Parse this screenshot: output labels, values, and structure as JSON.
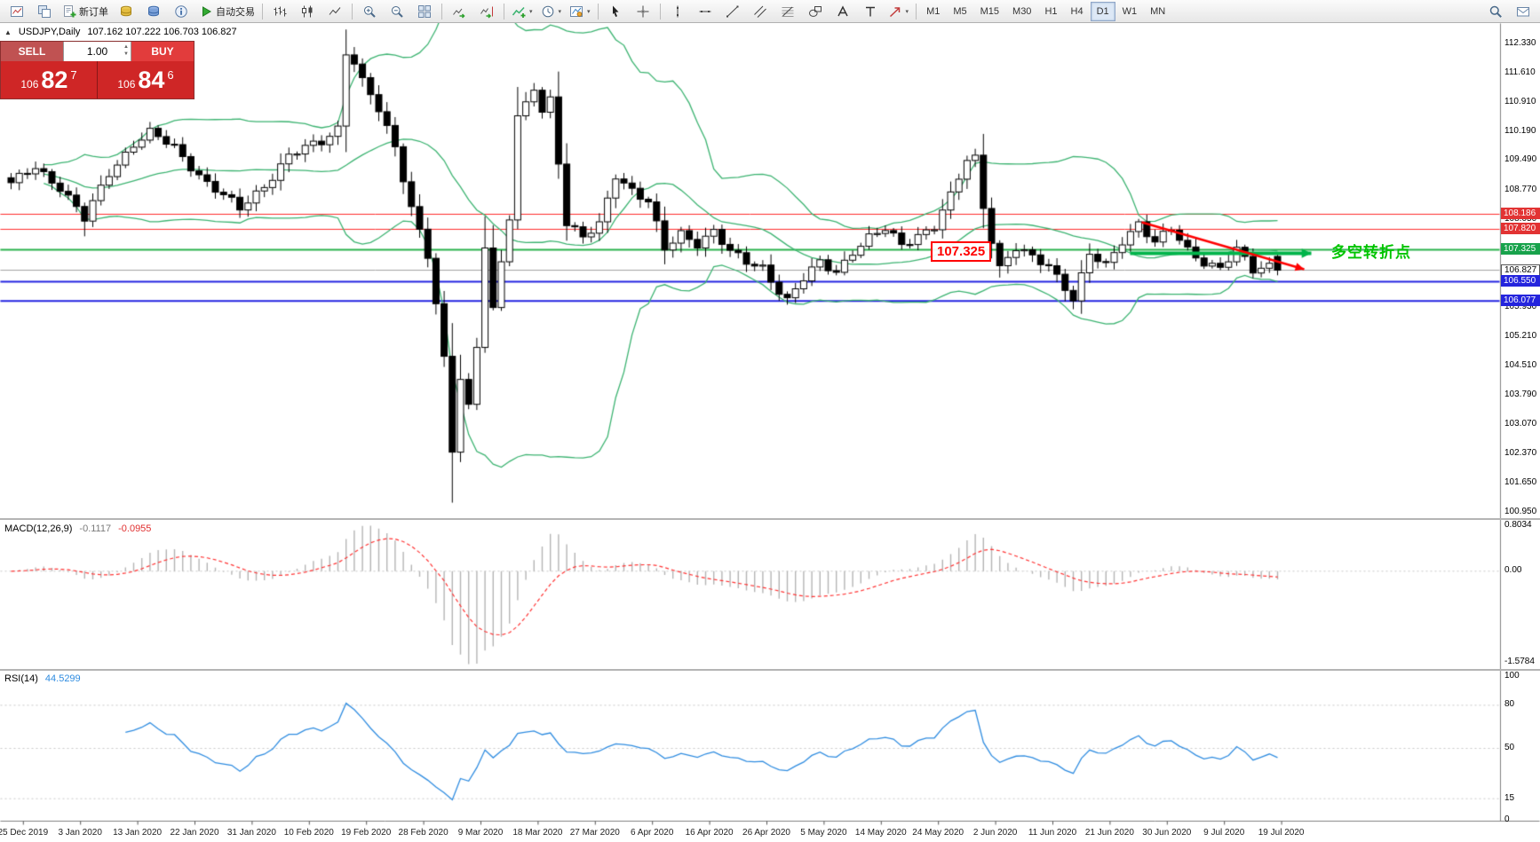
{
  "toolbar": {
    "new_order_label": "新订单",
    "autotrading_label": "自动交易",
    "timeframes": [
      "M1",
      "M5",
      "M15",
      "M30",
      "H1",
      "H4",
      "D1",
      "W1",
      "MN"
    ],
    "active_timeframe": "D1"
  },
  "chart": {
    "symbol": "USDJPY,Daily",
    "ohlc": "107.162 107.222 106.703 106.827"
  },
  "trade_panel": {
    "sell_label": "SELL",
    "buy_label": "BUY",
    "volume": "1.00",
    "sell_price": {
      "prefix": "106",
      "big": "82",
      "sup": "7"
    },
    "buy_price": {
      "prefix": "106",
      "big": "84",
      "sup": "6"
    }
  },
  "price_axis": {
    "ticks": [
      "112.330",
      "111.610",
      "110.910",
      "110.190",
      "109.490",
      "108.770",
      "108.050",
      "107.330",
      "106.610",
      "105.930",
      "105.210",
      "104.510",
      "103.790",
      "103.070",
      "102.370",
      "101.650",
      "100.950"
    ],
    "special": [
      {
        "text": "108.186",
        "bg": "#e23333",
        "fg": "#ffffff"
      },
      {
        "text": "107.820",
        "bg": "#e23333",
        "fg": "#ffffff"
      },
      {
        "text": "107.325",
        "bg": "#17a24b",
        "fg": "#ffffff"
      },
      {
        "text": "106.827",
        "bg": "#ffffff",
        "fg": "#000000",
        "border": "#555555"
      },
      {
        "text": "106.550",
        "bg": "#2424dd",
        "fg": "#ffffff"
      },
      {
        "text": "106.077",
        "bg": "#2424dd",
        "fg": "#ffffff"
      }
    ]
  },
  "annotations": {
    "price_tag": "107.325",
    "cn_label": "多空转折点"
  },
  "macd": {
    "label": "MACD(12,26,9)",
    "value_main": "-0.1117",
    "value_signal": "-0.0955",
    "axis": [
      "0.8034",
      "0.00",
      "-1.5784"
    ]
  },
  "rsi": {
    "label": "RSI(14)",
    "value": "44.5299",
    "axis": [
      "100",
      "80",
      "50",
      "15",
      "0"
    ]
  },
  "time_axis": [
    "25 Dec 2019",
    "3 Jan 2020",
    "13 Jan 2020",
    "22 Jan 2020",
    "31 Jan 2020",
    "10 Feb 2020",
    "19 Feb 2020",
    "28 Feb 2020",
    "9 Mar 2020",
    "18 Mar 2020",
    "27 Mar 2020",
    "6 Apr 2020",
    "16 Apr 2020",
    "26 Apr 2020",
    "5 May 2020",
    "14 May 2020",
    "24 May 2020",
    "2 Jun 2020",
    "11 Jun 2020",
    "21 Jun 2020",
    "30 Jun 2020",
    "9 Jul 2020",
    "19 Jul 2020"
  ],
  "chart_data": {
    "type": "candlestick",
    "symbol": "USDJPY",
    "timeframe": "Daily",
    "bars": 156,
    "price_range_visible": [
      100.95,
      112.33
    ],
    "anchors": [
      [
        0,
        108.9
      ],
      [
        3,
        109.35
      ],
      [
        6,
        108.85
      ],
      [
        9,
        108.05
      ],
      [
        12,
        109.2
      ],
      [
        15,
        109.9
      ],
      [
        17,
        110.15
      ],
      [
        20,
        109.8
      ],
      [
        24,
        108.95
      ],
      [
        28,
        108.3
      ],
      [
        31,
        108.9
      ],
      [
        34,
        109.6
      ],
      [
        38,
        109.95
      ],
      [
        40,
        110.3
      ],
      [
        41,
        112.15
      ],
      [
        42,
        111.9
      ],
      [
        43,
        111.4
      ],
      [
        45,
        110.7
      ],
      [
        47,
        109.8
      ],
      [
        49,
        108.4
      ],
      [
        51,
        107.2
      ],
      [
        52,
        106.0
      ],
      [
        53,
        104.6
      ],
      [
        54,
        102.4
      ],
      [
        55,
        104.2
      ],
      [
        56,
        103.5
      ],
      [
        57,
        105.0
      ],
      [
        58,
        107.5
      ],
      [
        59,
        105.9
      ],
      [
        60,
        107.0
      ],
      [
        61,
        108.1
      ],
      [
        62,
        110.5
      ],
      [
        63,
        110.8
      ],
      [
        64,
        111.25
      ],
      [
        65,
        110.7
      ],
      [
        66,
        111.0
      ],
      [
        67,
        109.5
      ],
      [
        68,
        108.0
      ],
      [
        70,
        107.6
      ],
      [
        72,
        107.9
      ],
      [
        74,
        109.15
      ],
      [
        76,
        108.8
      ],
      [
        78,
        108.5
      ],
      [
        80,
        107.3
      ],
      [
        82,
        107.7
      ],
      [
        84,
        107.5
      ],
      [
        86,
        107.8
      ],
      [
        88,
        107.25
      ],
      [
        90,
        107.0
      ],
      [
        92,
        106.9
      ],
      [
        94,
        106.35
      ],
      [
        95,
        106.1
      ],
      [
        97,
        106.6
      ],
      [
        99,
        107.0
      ],
      [
        101,
        106.8
      ],
      [
        103,
        107.3
      ],
      [
        105,
        107.6
      ],
      [
        107,
        107.8
      ],
      [
        109,
        107.45
      ],
      [
        111,
        107.7
      ],
      [
        113,
        107.9
      ],
      [
        115,
        108.6
      ],
      [
        117,
        109.5
      ],
      [
        118,
        109.55
      ],
      [
        119,
        108.4
      ],
      [
        120,
        107.6
      ],
      [
        121,
        106.9
      ],
      [
        123,
        107.35
      ],
      [
        125,
        107.1
      ],
      [
        127,
        106.95
      ],
      [
        129,
        106.45
      ],
      [
        130,
        106.15
      ],
      [
        132,
        107.2
      ],
      [
        134,
        106.9
      ],
      [
        136,
        107.55
      ],
      [
        138,
        108.0
      ],
      [
        140,
        107.5
      ],
      [
        142,
        107.8
      ],
      [
        144,
        107.3
      ],
      [
        146,
        107.05
      ],
      [
        148,
        106.9
      ],
      [
        150,
        107.3
      ],
      [
        152,
        106.8
      ],
      [
        154,
        106.95
      ],
      [
        155,
        106.83
      ]
    ],
    "wick_overrides": {
      "9": {
        "low": 107.65
      },
      "41": {
        "high": 112.23
      },
      "54": {
        "low": 101.18
      },
      "58": {
        "high": 107.95
      },
      "95": {
        "low": 105.99
      },
      "129": {
        "low": 106.07
      }
    },
    "last_candle": {
      "open": 107.162,
      "high": 107.222,
      "low": 106.703,
      "close": 106.827
    },
    "current_price": 106.827,
    "current_price_color": "#a0a0a0",
    "hlines": [
      {
        "value": 108.186,
        "color": "#ff2a2a",
        "width": 1
      },
      {
        "value": 107.82,
        "color": "#ff2a2a",
        "width": 1
      },
      {
        "value": 107.325,
        "color": "#28b14c",
        "width": 2
      },
      {
        "value": 106.55,
        "color": "#2424e0",
        "width": 2
      },
      {
        "value": 106.077,
        "color": "#2424e0",
        "width": 2
      }
    ],
    "bollinger": {
      "period": 20,
      "deviation": 2,
      "color": "#3cb371"
    },
    "macd": {
      "fast": 12,
      "slow": 26,
      "signal_period": 9,
      "hist_color": "#b4b4b4",
      "signal_color": "#ff3333",
      "axis_max": 0.8034,
      "axis_min": -1.5784
    },
    "rsi": {
      "period": 14,
      "color": "#2f8ce0",
      "levels": [
        80,
        50,
        15
      ]
    },
    "candle_up_color": "#ffffff",
    "candle_down_color": "#000000",
    "candle_border": "#000000",
    "trend_arrows": {
      "red_arrow": {
        "from": [
          1285,
          224
        ],
        "to": [
          1468,
          277
        ],
        "color": "#ff0000"
      },
      "green_arrow": {
        "from": [
          1272,
          259
        ],
        "to": [
          1476,
          259
        ],
        "color": "#00b44a"
      }
    }
  }
}
